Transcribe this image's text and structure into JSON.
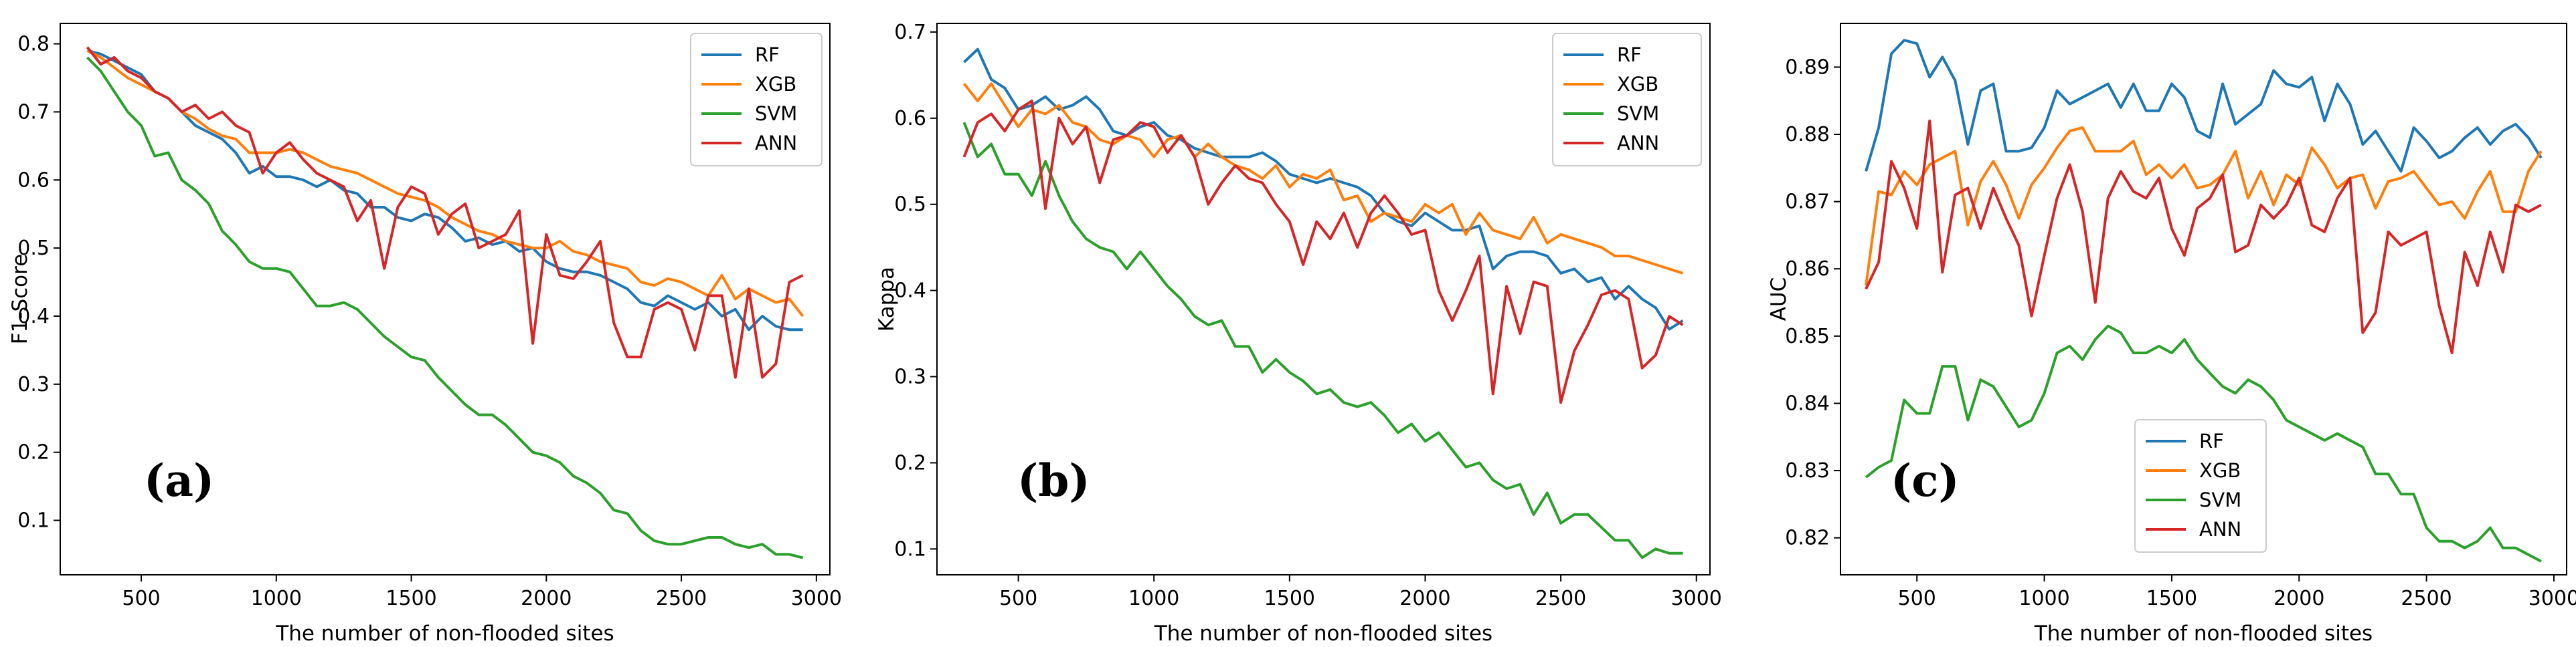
{
  "figure": {
    "colors": {
      "RF": "#1f77b4",
      "XGB": "#ff7f0e",
      "SVM": "#2ca02c",
      "ANN": "#d62728"
    }
  },
  "chart_data": [
    {
      "type": "line",
      "panel_label": "(a)",
      "xlabel": "The number of non-flooded sites",
      "ylabel": "F1-Score",
      "xlim": [
        200,
        3050
      ],
      "ylim": [
        0.02,
        0.83
      ],
      "xticks": [
        500,
        1000,
        1500,
        2000,
        2500,
        3000
      ],
      "xtick_labels": [
        "500",
        "1000",
        "1500",
        "2000",
        "2500",
        "3000"
      ],
      "yticks": [
        0.1,
        0.2,
        0.3,
        0.4,
        0.5,
        0.6,
        0.7,
        0.8
      ],
      "ytick_labels": [
        "0.1",
        "0.2",
        "0.3",
        "0.4",
        "0.5",
        "0.6",
        "0.7",
        "0.8"
      ],
      "legend_position": "top-right",
      "x": [
        300,
        350,
        400,
        450,
        500,
        550,
        600,
        650,
        700,
        750,
        800,
        850,
        900,
        950,
        1000,
        1050,
        1100,
        1150,
        1200,
        1250,
        1300,
        1350,
        1400,
        1450,
        1500,
        1550,
        1600,
        1650,
        1700,
        1750,
        1800,
        1850,
        1900,
        1950,
        2000,
        2050,
        2100,
        2150,
        2200,
        2250,
        2300,
        2350,
        2400,
        2450,
        2500,
        2550,
        2600,
        2650,
        2700,
        2750,
        2800,
        2850,
        2900,
        2950
      ],
      "series": [
        {
          "name": "RF",
          "values": [
            0.79,
            0.785,
            0.775,
            0.765,
            0.755,
            0.73,
            0.72,
            0.7,
            0.68,
            0.67,
            0.66,
            0.64,
            0.61,
            0.62,
            0.605,
            0.605,
            0.6,
            0.59,
            0.6,
            0.585,
            0.58,
            0.56,
            0.56,
            0.545,
            0.54,
            0.55,
            0.545,
            0.53,
            0.51,
            0.515,
            0.505,
            0.51,
            0.495,
            0.5,
            0.48,
            0.47,
            0.465,
            0.465,
            0.46,
            0.45,
            0.44,
            0.42,
            0.415,
            0.43,
            0.42,
            0.41,
            0.42,
            0.4,
            0.41,
            0.38,
            0.4,
            0.385,
            0.38,
            0.38
          ]
        },
        {
          "name": "XGB",
          "values": [
            0.79,
            0.78,
            0.765,
            0.75,
            0.74,
            0.73,
            0.72,
            0.7,
            0.69,
            0.675,
            0.665,
            0.66,
            0.64,
            0.64,
            0.64,
            0.645,
            0.64,
            0.63,
            0.62,
            0.615,
            0.61,
            0.6,
            0.59,
            0.58,
            0.575,
            0.57,
            0.56,
            0.545,
            0.535,
            0.525,
            0.52,
            0.51,
            0.505,
            0.5,
            0.5,
            0.51,
            0.495,
            0.49,
            0.48,
            0.475,
            0.47,
            0.45,
            0.445,
            0.455,
            0.45,
            0.44,
            0.43,
            0.46,
            0.425,
            0.44,
            0.43,
            0.42,
            0.425,
            0.4
          ]
        },
        {
          "name": "SVM",
          "values": [
            0.78,
            0.76,
            0.73,
            0.7,
            0.68,
            0.635,
            0.64,
            0.6,
            0.585,
            0.565,
            0.525,
            0.505,
            0.48,
            0.47,
            0.47,
            0.465,
            0.44,
            0.415,
            0.415,
            0.42,
            0.41,
            0.39,
            0.37,
            0.355,
            0.34,
            0.335,
            0.31,
            0.29,
            0.27,
            0.255,
            0.255,
            0.24,
            0.22,
            0.2,
            0.195,
            0.185,
            0.165,
            0.155,
            0.14,
            0.115,
            0.11,
            0.085,
            0.07,
            0.065,
            0.065,
            0.07,
            0.075,
            0.075,
            0.065,
            0.06,
            0.065,
            0.05,
            0.05,
            0.045
          ]
        },
        {
          "name": "ANN",
          "values": [
            0.795,
            0.77,
            0.78,
            0.76,
            0.75,
            0.73,
            0.72,
            0.7,
            0.71,
            0.69,
            0.7,
            0.68,
            0.67,
            0.61,
            0.64,
            0.655,
            0.63,
            0.61,
            0.6,
            0.59,
            0.54,
            0.57,
            0.47,
            0.56,
            0.59,
            0.58,
            0.52,
            0.55,
            0.565,
            0.5,
            0.51,
            0.52,
            0.555,
            0.36,
            0.52,
            0.46,
            0.455,
            0.48,
            0.51,
            0.39,
            0.34,
            0.34,
            0.41,
            0.42,
            0.41,
            0.35,
            0.43,
            0.43,
            0.31,
            0.44,
            0.31,
            0.33,
            0.45,
            0.46
          ]
        }
      ]
    },
    {
      "type": "line",
      "panel_label": "(b)",
      "xlabel": "The number of non-flooded sites",
      "ylabel": "Kappa",
      "xlim": [
        200,
        3050
      ],
      "ylim": [
        0.07,
        0.71
      ],
      "xticks": [
        500,
        1000,
        1500,
        2000,
        2500,
        3000
      ],
      "xtick_labels": [
        "500",
        "1000",
        "1500",
        "2000",
        "2500",
        "3000"
      ],
      "yticks": [
        0.1,
        0.2,
        0.3,
        0.4,
        0.5,
        0.6,
        0.7
      ],
      "ytick_labels": [
        "0.1",
        "0.2",
        "0.3",
        "0.4",
        "0.5",
        "0.6",
        "0.7"
      ],
      "legend_position": "top-right",
      "x": [
        300,
        350,
        400,
        450,
        500,
        550,
        600,
        650,
        700,
        750,
        800,
        850,
        900,
        950,
        1000,
        1050,
        1100,
        1150,
        1200,
        1250,
        1300,
        1350,
        1400,
        1450,
        1500,
        1550,
        1600,
        1650,
        1700,
        1750,
        1800,
        1850,
        1900,
        1950,
        2000,
        2050,
        2100,
        2150,
        2200,
        2250,
        2300,
        2350,
        2400,
        2450,
        2500,
        2550,
        2600,
        2650,
        2700,
        2750,
        2800,
        2850,
        2900,
        2950
      ],
      "series": [
        {
          "name": "RF",
          "values": [
            0.665,
            0.68,
            0.645,
            0.635,
            0.61,
            0.615,
            0.625,
            0.61,
            0.615,
            0.625,
            0.61,
            0.585,
            0.58,
            0.59,
            0.595,
            0.58,
            0.575,
            0.565,
            0.56,
            0.555,
            0.555,
            0.555,
            0.56,
            0.55,
            0.535,
            0.53,
            0.525,
            0.53,
            0.525,
            0.52,
            0.51,
            0.49,
            0.48,
            0.475,
            0.49,
            0.48,
            0.47,
            0.47,
            0.475,
            0.425,
            0.44,
            0.445,
            0.445,
            0.44,
            0.42,
            0.425,
            0.41,
            0.415,
            0.39,
            0.405,
            0.39,
            0.38,
            0.355,
            0.365
          ]
        },
        {
          "name": "XGB",
          "values": [
            0.64,
            0.62,
            0.64,
            0.615,
            0.59,
            0.61,
            0.605,
            0.615,
            0.595,
            0.59,
            0.575,
            0.57,
            0.58,
            0.575,
            0.555,
            0.575,
            0.58,
            0.555,
            0.57,
            0.555,
            0.545,
            0.54,
            0.53,
            0.545,
            0.52,
            0.535,
            0.53,
            0.54,
            0.505,
            0.51,
            0.48,
            0.49,
            0.485,
            0.48,
            0.5,
            0.49,
            0.5,
            0.465,
            0.49,
            0.47,
            0.465,
            0.46,
            0.485,
            0.455,
            0.465,
            0.46,
            0.455,
            0.45,
            0.44,
            0.44,
            0.435,
            0.43,
            0.425,
            0.42
          ]
        },
        {
          "name": "SVM",
          "values": [
            0.595,
            0.555,
            0.57,
            0.535,
            0.535,
            0.51,
            0.55,
            0.51,
            0.48,
            0.46,
            0.45,
            0.445,
            0.425,
            0.445,
            0.425,
            0.405,
            0.39,
            0.37,
            0.36,
            0.365,
            0.335,
            0.335,
            0.305,
            0.32,
            0.305,
            0.295,
            0.28,
            0.285,
            0.27,
            0.265,
            0.27,
            0.255,
            0.235,
            0.245,
            0.225,
            0.235,
            0.215,
            0.195,
            0.2,
            0.18,
            0.17,
            0.175,
            0.14,
            0.165,
            0.13,
            0.14,
            0.14,
            0.125,
            0.11,
            0.11,
            0.09,
            0.1,
            0.095,
            0.095
          ]
        },
        {
          "name": "ANN",
          "values": [
            0.555,
            0.595,
            0.605,
            0.585,
            0.61,
            0.62,
            0.495,
            0.6,
            0.57,
            0.59,
            0.525,
            0.575,
            0.58,
            0.595,
            0.59,
            0.56,
            0.58,
            0.555,
            0.5,
            0.525,
            0.545,
            0.53,
            0.525,
            0.5,
            0.48,
            0.43,
            0.48,
            0.46,
            0.49,
            0.45,
            0.49,
            0.51,
            0.49,
            0.465,
            0.47,
            0.4,
            0.365,
            0.4,
            0.44,
            0.28,
            0.405,
            0.35,
            0.41,
            0.405,
            0.27,
            0.33,
            0.36,
            0.395,
            0.4,
            0.39,
            0.31,
            0.325,
            0.37,
            0.36
          ]
        }
      ]
    },
    {
      "type": "line",
      "panel_label": "(c)",
      "xlabel": "The number of non-flooded sites",
      "ylabel": "AUC",
      "xlim": [
        200,
        3050
      ],
      "ylim": [
        0.8145,
        0.8965
      ],
      "xticks": [
        500,
        1000,
        1500,
        2000,
        2500,
        3000
      ],
      "xtick_labels": [
        "500",
        "1000",
        "1500",
        "2000",
        "2500",
        "3000"
      ],
      "yticks": [
        0.82,
        0.83,
        0.84,
        0.85,
        0.86,
        0.87,
        0.88,
        0.89
      ],
      "ytick_labels": [
        "0.82",
        "0.83",
        "0.84",
        "0.85",
        "0.86",
        "0.87",
        "0.88",
        "0.89"
      ],
      "legend_position": "lower-left",
      "x": [
        300,
        350,
        400,
        450,
        500,
        550,
        600,
        650,
        700,
        750,
        800,
        850,
        900,
        950,
        1000,
        1050,
        1100,
        1150,
        1200,
        1250,
        1300,
        1350,
        1400,
        1450,
        1500,
        1550,
        1600,
        1650,
        1700,
        1750,
        1800,
        1850,
        1900,
        1950,
        2000,
        2050,
        2100,
        2150,
        2200,
        2250,
        2300,
        2350,
        2400,
        2450,
        2500,
        2550,
        2600,
        2650,
        2700,
        2750,
        2800,
        2850,
        2900,
        2950
      ],
      "series": [
        {
          "name": "RF",
          "values": [
            0.8745,
            0.881,
            0.892,
            0.894,
            0.8935,
            0.8885,
            0.8915,
            0.888,
            0.8785,
            0.8865,
            0.8875,
            0.8775,
            0.8775,
            0.878,
            0.881,
            0.8865,
            0.8845,
            0.8855,
            0.8865,
            0.8875,
            0.884,
            0.8875,
            0.8835,
            0.8835,
            0.8875,
            0.8855,
            0.8805,
            0.8795,
            0.8875,
            0.8815,
            0.883,
            0.8845,
            0.8895,
            0.8875,
            0.887,
            0.8885,
            0.882,
            0.8875,
            0.8845,
            0.8785,
            0.8805,
            0.8775,
            0.8745,
            0.881,
            0.879,
            0.8765,
            0.8775,
            0.8795,
            0.881,
            0.8785,
            0.8805,
            0.8815,
            0.8795,
            0.8765
          ]
        },
        {
          "name": "XGB",
          "values": [
            0.8575,
            0.8715,
            0.871,
            0.8745,
            0.8725,
            0.8755,
            0.8765,
            0.8775,
            0.8665,
            0.873,
            0.876,
            0.8725,
            0.8675,
            0.8725,
            0.875,
            0.878,
            0.8805,
            0.881,
            0.8775,
            0.8775,
            0.8775,
            0.879,
            0.874,
            0.8755,
            0.8735,
            0.8755,
            0.872,
            0.8725,
            0.874,
            0.8775,
            0.8705,
            0.8745,
            0.8695,
            0.874,
            0.8725,
            0.878,
            0.8755,
            0.872,
            0.8735,
            0.874,
            0.869,
            0.873,
            0.8735,
            0.8745,
            0.872,
            0.8695,
            0.87,
            0.8675,
            0.8715,
            0.8745,
            0.8685,
            0.8685,
            0.8745,
            0.8775
          ]
        },
        {
          "name": "SVM",
          "values": [
            0.829,
            0.8305,
            0.8315,
            0.8405,
            0.8385,
            0.8385,
            0.8455,
            0.8455,
            0.8375,
            0.8435,
            0.8425,
            0.8395,
            0.8365,
            0.8375,
            0.8415,
            0.8475,
            0.8485,
            0.8465,
            0.8495,
            0.8515,
            0.8505,
            0.8475,
            0.8475,
            0.8485,
            0.8475,
            0.8495,
            0.8465,
            0.8445,
            0.8425,
            0.8415,
            0.8435,
            0.8425,
            0.8405,
            0.8375,
            0.8365,
            0.8355,
            0.8345,
            0.8355,
            0.8345,
            0.8335,
            0.8295,
            0.8295,
            0.8265,
            0.8265,
            0.8215,
            0.8195,
            0.8195,
            0.8185,
            0.8195,
            0.8215,
            0.8185,
            0.8185,
            0.8175,
            0.8165
          ]
        },
        {
          "name": "ANN",
          "values": [
            0.857,
            0.861,
            0.876,
            0.872,
            0.866,
            0.882,
            0.8595,
            0.871,
            0.872,
            0.866,
            0.872,
            0.8675,
            0.8635,
            0.853,
            0.862,
            0.8705,
            0.8755,
            0.8685,
            0.855,
            0.8705,
            0.8745,
            0.8715,
            0.8705,
            0.8735,
            0.866,
            0.862,
            0.869,
            0.8705,
            0.874,
            0.8625,
            0.8635,
            0.8695,
            0.8675,
            0.8695,
            0.8735,
            0.8665,
            0.8655,
            0.8705,
            0.8735,
            0.8505,
            0.8535,
            0.8655,
            0.8635,
            0.8645,
            0.8655,
            0.8545,
            0.8475,
            0.8625,
            0.8575,
            0.8655,
            0.8595,
            0.8695,
            0.8685,
            0.8695
          ]
        }
      ]
    }
  ]
}
